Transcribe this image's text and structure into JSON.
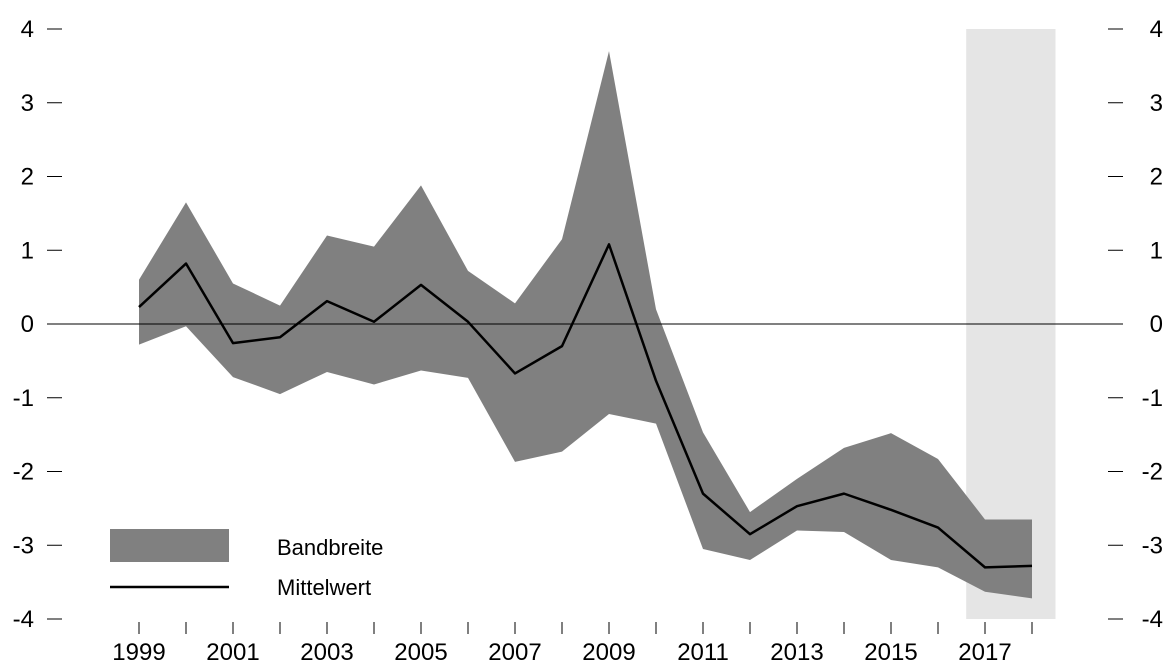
{
  "chart_data": {
    "type": "area",
    "title": "",
    "xlabel": "",
    "ylabel": "",
    "x": [
      1999,
      2000,
      2001,
      2002,
      2003,
      2004,
      2005,
      2006,
      2007,
      2008,
      2009,
      2010,
      2011,
      2012,
      2013,
      2014,
      2015,
      2016,
      2017,
      2018
    ],
    "x_tick_labels": [
      "1999",
      "2001",
      "2003",
      "2005",
      "2007",
      "2009",
      "2011",
      "2013",
      "2015",
      "2017"
    ],
    "y_ticks_left": [
      "4",
      "3",
      "2",
      "1",
      "0",
      "-1",
      "-2",
      "-3",
      "-4"
    ],
    "y_ticks_right": [
      "4",
      "3",
      "2",
      "1",
      "0",
      "-1",
      "-2",
      "-3",
      "-4"
    ],
    "ylim": [
      -4,
      4
    ],
    "xlim": [
      1998,
      2019.4
    ],
    "zero_line": true,
    "grid": false,
    "series": [
      {
        "name": "Bandbreite",
        "kind": "band",
        "upper": [
          0.6,
          1.65,
          0.55,
          0.25,
          1.2,
          1.05,
          1.88,
          0.72,
          0.28,
          1.15,
          3.7,
          0.2,
          -1.47,
          -2.55,
          -2.1,
          -1.68,
          -1.48,
          -1.83,
          -2.65,
          -2.65
        ],
        "lower": [
          -0.28,
          -0.03,
          -0.72,
          -0.95,
          -0.65,
          -0.82,
          -0.63,
          -0.73,
          -1.87,
          -1.73,
          -1.22,
          -1.35,
          -3.05,
          -3.2,
          -2.8,
          -2.82,
          -3.2,
          -3.3,
          -3.63,
          -3.72
        ]
      },
      {
        "name": "Mittelwert",
        "kind": "line",
        "values": [
          0.23,
          0.82,
          -0.26,
          -0.18,
          0.31,
          0.03,
          0.53,
          0.03,
          -0.67,
          -0.3,
          1.08,
          -0.77,
          -2.3,
          -2.85,
          -2.47,
          -2.3,
          -2.52,
          -2.76,
          -3.3,
          -3.28
        ]
      }
    ],
    "shaded_region": {
      "x_start": 2016.6,
      "x_end": 2018.5,
      "color": "#e5e5e5"
    },
    "legend": {
      "position": "bottom-left",
      "items": [
        "Bandbreite",
        "Mittelwert"
      ]
    },
    "colors": {
      "band": "#808080",
      "line": "#000000",
      "shade": "#e5e5e5"
    }
  }
}
